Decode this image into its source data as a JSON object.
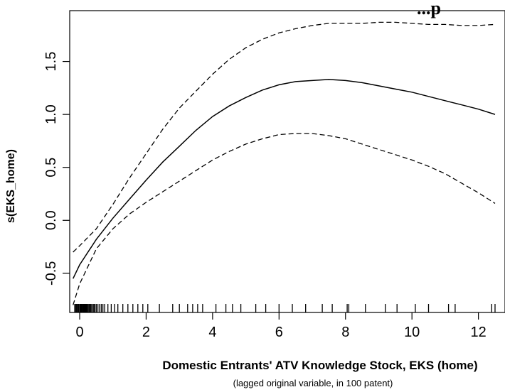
{
  "chart_data": {
    "type": "line",
    "title": "...p",
    "xlabel": "Domestic Entrants' ATV Knowledge Stock, EKS (home)",
    "xlabel_sub": "(lagged original variable, in 100 patent)",
    "ylabel": "s(EKS_home)",
    "xlim": [
      -0.3,
      12.8
    ],
    "ylim": [
      -0.87,
      1.98
    ],
    "x_ticks": [
      0,
      2,
      4,
      6,
      8,
      10,
      12
    ],
    "y_ticks": [
      -0.5,
      0.0,
      0.5,
      1.0,
      1.5
    ],
    "x_tick_labels": [
      "0",
      "2",
      "4",
      "6",
      "8",
      "10",
      "12"
    ],
    "y_tick_labels": [
      "-0.5",
      "0.0",
      "0.5",
      "1.0",
      "1.5"
    ],
    "series": [
      {
        "role": "fit",
        "style": "solid",
        "x": [
          -0.2,
          0,
          0.5,
          1,
          1.5,
          2,
          2.5,
          3,
          3.5,
          4,
          4.5,
          5,
          5.5,
          6,
          6.5,
          7,
          7.5,
          8,
          8.5,
          9,
          9.5,
          10,
          10.5,
          11,
          11.5,
          12,
          12.5
        ],
        "y": [
          -0.55,
          -0.42,
          -0.18,
          0.02,
          0.2,
          0.38,
          0.55,
          0.7,
          0.85,
          0.98,
          1.08,
          1.16,
          1.23,
          1.28,
          1.31,
          1.32,
          1.33,
          1.32,
          1.3,
          1.27,
          1.24,
          1.21,
          1.17,
          1.13,
          1.09,
          1.05,
          1.0
        ]
      },
      {
        "role": "upper",
        "style": "dashed",
        "x": [
          -0.2,
          0,
          0.5,
          1,
          1.5,
          2,
          2.5,
          3,
          3.5,
          4,
          4.5,
          5,
          5.5,
          6,
          6.5,
          7,
          7.5,
          8,
          8.5,
          9,
          9.5,
          10,
          10.5,
          11,
          11.5,
          12,
          12.5
        ],
        "y": [
          -0.3,
          -0.24,
          -0.08,
          0.15,
          0.4,
          0.63,
          0.86,
          1.06,
          1.22,
          1.38,
          1.52,
          1.63,
          1.71,
          1.77,
          1.81,
          1.84,
          1.86,
          1.86,
          1.86,
          1.87,
          1.87,
          1.86,
          1.85,
          1.85,
          1.84,
          1.84,
          1.85
        ]
      },
      {
        "role": "lower",
        "style": "dashed",
        "x": [
          -0.2,
          0,
          0.5,
          1,
          1.5,
          2,
          2.5,
          3,
          3.5,
          4,
          4.5,
          5,
          5.5,
          6,
          6.5,
          7,
          7.5,
          8,
          8.5,
          9,
          9.5,
          10,
          10.5,
          11,
          11.5,
          12,
          12.5
        ],
        "y": [
          -0.8,
          -0.6,
          -0.27,
          -0.08,
          0.06,
          0.17,
          0.27,
          0.37,
          0.47,
          0.57,
          0.65,
          0.72,
          0.77,
          0.81,
          0.82,
          0.82,
          0.8,
          0.77,
          0.72,
          0.67,
          0.62,
          0.57,
          0.51,
          0.44,
          0.35,
          0.26,
          0.16
        ]
      }
    ],
    "rug_x": [
      -0.15,
      -0.12,
      -0.1,
      -0.08,
      -0.05,
      -0.03,
      0.0,
      0.02,
      0.04,
      0.06,
      0.08,
      0.1,
      0.12,
      0.14,
      0.16,
      0.18,
      0.2,
      0.22,
      0.25,
      0.28,
      0.3,
      0.33,
      0.36,
      0.4,
      0.43,
      0.46,
      0.5,
      0.55,
      0.6,
      0.65,
      0.7,
      0.75,
      0.85,
      0.95,
      1.05,
      1.15,
      1.3,
      1.45,
      1.6,
      1.75,
      1.9,
      2.05,
      2.4,
      2.8,
      3.0,
      3.25,
      3.4,
      3.55,
      3.7,
      4.1,
      4.4,
      4.6,
      4.85,
      5.3,
      5.6,
      6.0,
      6.4,
      6.8,
      7.3,
      7.6,
      8.05,
      8.1,
      8.6,
      9.2,
      9.55,
      10.1,
      10.5,
      11.1,
      11.3,
      12.4,
      12.5
    ],
    "grid": false,
    "legend": "none"
  }
}
